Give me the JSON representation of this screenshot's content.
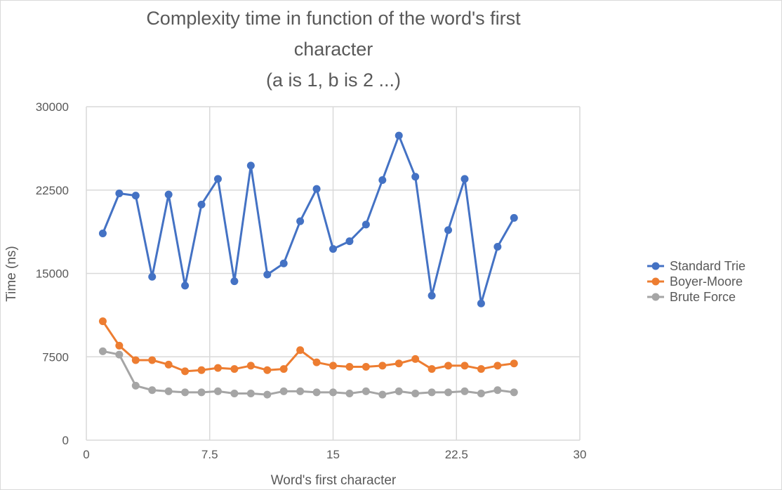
{
  "chart_data": {
    "type": "scatter",
    "title_lines": [
      "Complexity time in function of the word's first",
      "character",
      "(a is 1, b is 2 ...)"
    ],
    "xlabel": "Word's first character",
    "ylabel": "Time (ns)",
    "xlim": [
      0,
      30
    ],
    "ylim": [
      0,
      30000
    ],
    "xticks": [
      0,
      7.5,
      15,
      22.5,
      30
    ],
    "xtick_labels": [
      "0",
      "7.5",
      "15",
      "22.5",
      "30"
    ],
    "yticks": [
      0,
      7500,
      15000,
      22500,
      30000
    ],
    "ytick_labels": [
      "0",
      "7500",
      "15000",
      "22500",
      "30000"
    ],
    "grid": true,
    "legend_position": "right",
    "x": [
      1,
      2,
      3,
      4,
      5,
      6,
      7,
      8,
      9,
      10,
      11,
      12,
      13,
      14,
      15,
      16,
      17,
      18,
      19,
      20,
      21,
      22,
      23,
      24,
      25,
      26
    ],
    "series": [
      {
        "name": "Standard Trie",
        "color": "#4472c4",
        "values": [
          18600,
          22200,
          22000,
          14700,
          22100,
          13900,
          21200,
          23500,
          14300,
          24700,
          14900,
          15900,
          19700,
          22600,
          17200,
          17900,
          19400,
          23400,
          27400,
          23700,
          13000,
          18900,
          23500,
          12300,
          17400,
          20000
        ]
      },
      {
        "name": "Boyer-Moore",
        "color": "#ed7d31",
        "values": [
          10700,
          8500,
          7200,
          7200,
          6800,
          6200,
          6300,
          6500,
          6400,
          6700,
          6300,
          6400,
          8100,
          7000,
          6700,
          6600,
          6600,
          6700,
          6900,
          7300,
          6400,
          6700,
          6700,
          6400,
          6700,
          6900
        ]
      },
      {
        "name": "Brute Force",
        "color": "#a5a5a5",
        "values": [
          8000,
          7700,
          4900,
          4500,
          4400,
          4300,
          4300,
          4400,
          4200,
          4200,
          4100,
          4400,
          4400,
          4300,
          4300,
          4200,
          4400,
          4100,
          4400,
          4200,
          4300,
          4300,
          4400,
          4200,
          4500,
          4300
        ]
      }
    ]
  }
}
